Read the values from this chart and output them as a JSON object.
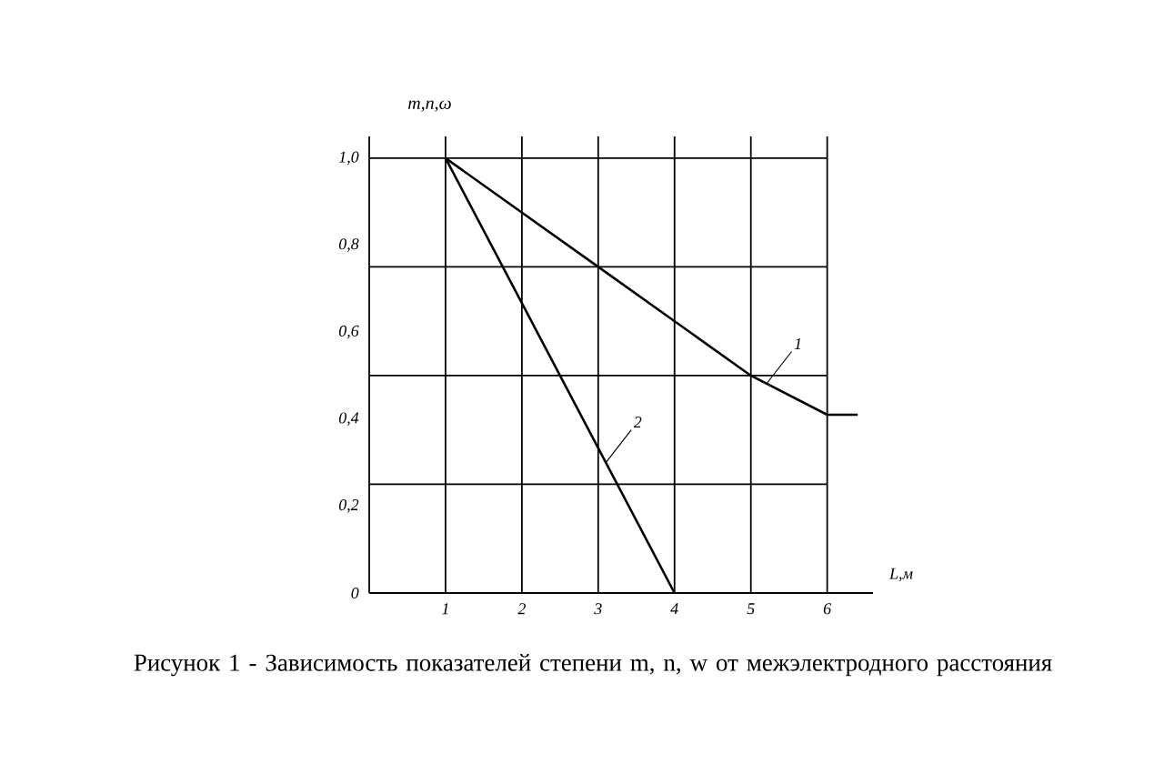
{
  "chart_data": {
    "type": "line",
    "xlabel": "L,м",
    "ylabel": "m,n,ω",
    "series": [
      {
        "color": "#000000",
        "x": [
          1,
          3,
          5,
          6,
          6.4
        ],
        "values": [
          1.0,
          0.75,
          0.5,
          0.41,
          0.41
        ]
      },
      {
        "color": "#000000",
        "x": [
          1,
          4
        ],
        "values": [
          1.0,
          0
        ]
      }
    ],
    "xlim": [
      0,
      6.6
    ],
    "ylim": [
      0,
      1.05
    ],
    "xticks": [
      1,
      2,
      3,
      4,
      5,
      6
    ],
    "yticks": [
      {
        "value": 0,
        "label": "0"
      },
      {
        "value": 0.2,
        "label": "0,2"
      },
      {
        "value": 0.4,
        "label": "0,4"
      },
      {
        "value": 0.6,
        "label": "0,6"
      },
      {
        "value": 0.8,
        "label": "0,8"
      },
      {
        "value": 1.0,
        "label": "1,0"
      }
    ],
    "grid": "x",
    "marker": "none",
    "line_style": "solid",
    "ref_lines": [
      {
        "axis": "y",
        "value": 0.25
      },
      {
        "axis": "y",
        "value": 0.5
      },
      {
        "axis": "y",
        "value": 0.75
      },
      {
        "axis": "y",
        "value": 1.0
      }
    ],
    "annotations": [
      {
        "text": "1",
        "x": 5.2,
        "y": 0.48
      },
      {
        "text": "2",
        "x": 3.1,
        "y": 0.3
      },
      "Рисунок 1 - Зависимость показателей степени m, n, w от межэлектродного расстояния"
    ]
  }
}
